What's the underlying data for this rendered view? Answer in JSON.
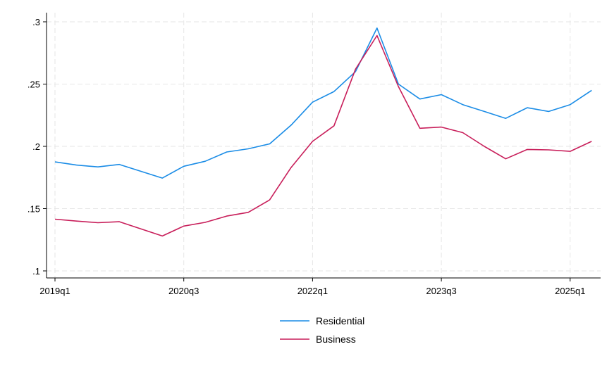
{
  "chart_data": {
    "type": "line",
    "title": "",
    "xlabel": "",
    "ylabel": "",
    "x": [
      "2019q1",
      "2019q2",
      "2019q3",
      "2019q4",
      "2020q1",
      "2020q2",
      "2020q3",
      "2020q4",
      "2021q1",
      "2021q2",
      "2021q3",
      "2021q4",
      "2022q1",
      "2022q2",
      "2022q3",
      "2022q4",
      "2023q1",
      "2023q2",
      "2023q3",
      "2023q4",
      "2024q1",
      "2024q2",
      "2024q3",
      "2024q4",
      "2025q1",
      "2025q2"
    ],
    "x_tick_labels": [
      "2019q1",
      "2020q3",
      "2022q1",
      "2023q3",
      "2025q1"
    ],
    "y_tick_labels": [
      ".1",
      ".15",
      ".2",
      ".25",
      ".3"
    ],
    "ylim": [
      0.1,
      0.3
    ],
    "grid": true,
    "legend_position": "bottom",
    "series": [
      {
        "name": "Residential",
        "color": "#1a8ce6",
        "values": [
          0.1875,
          0.185,
          0.1835,
          0.1855,
          null,
          0.1745,
          0.184,
          0.188,
          0.1955,
          0.198,
          0.202,
          0.217,
          0.2355,
          0.244,
          0.26,
          0.295,
          0.25,
          0.238,
          0.2415,
          0.2335,
          0.228,
          0.2225,
          0.231,
          0.228,
          0.2335,
          0.245
        ]
      },
      {
        "name": "Business",
        "color": "#c81e5a",
        "values": [
          0.1415,
          0.14,
          0.1387,
          0.1395,
          null,
          0.128,
          0.136,
          0.139,
          0.144,
          0.147,
          0.157,
          0.183,
          0.204,
          0.2165,
          0.262,
          0.289,
          0.248,
          0.2145,
          0.2155,
          0.211,
          0.2,
          0.19,
          0.1975,
          0.1972,
          0.196,
          0.204
        ]
      }
    ]
  }
}
